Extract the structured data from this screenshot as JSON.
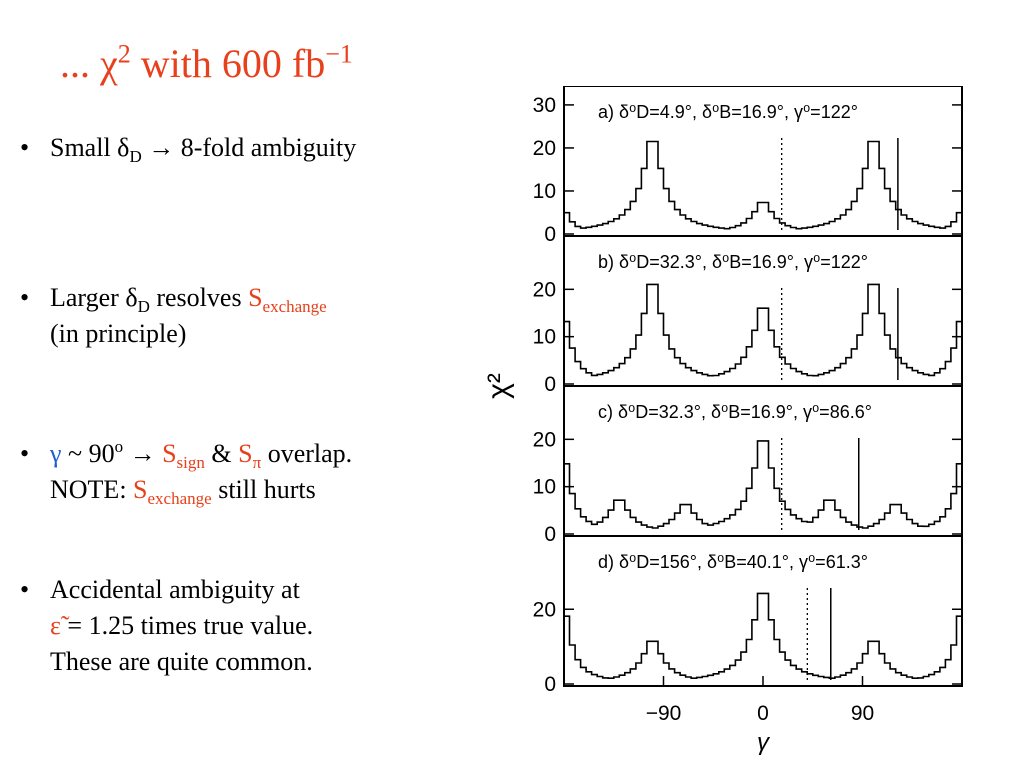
{
  "slide": {
    "title": {
      "prefix": "... ",
      "chi": "χ",
      "chi_exp": "2",
      "middle": " with  600 fb",
      "fb_exp": "−1"
    },
    "bullets": [
      {
        "marker": "•",
        "small": "Small ",
        "delta": "δ",
        "delta_sub": "D",
        "arrow_text": " → 8-fold ambiguity"
      },
      {
        "marker": "•",
        "larger": "Larger ",
        "delta": "δ",
        "delta_sub": "D",
        "resolves": " resolves ",
        "S": "S",
        "S_sub": "exchange",
        "line2": "(in principle)"
      },
      {
        "marker": "•",
        "gamma": "γ",
        "approx": " ~ 90",
        "deg": "o",
        "arrow": " → ",
        "S1": "S",
        "S1_sub": "sign",
        "amp": " & ",
        "S2": "S",
        "S2_sub": "π",
        "overlap": " overlap.",
        "note": "NOTE: ",
        "S3": "S",
        "S3_sub": "exchange",
        "hurts": " still hurts"
      },
      {
        "marker": "•",
        "line1": "Accidental ambiguity at",
        "eps": "ε̃",
        "line2_rest": " = 1.25 times true value.",
        "line3": "These are quite common."
      }
    ]
  },
  "chart_data": {
    "type": "line",
    "xlabel": "γ",
    "ylabel": "χ²",
    "xlim": [
      -180,
      180
    ],
    "xticks": [
      "−90",
      "0",
      "90"
    ],
    "panels": [
      {
        "label": "a) δ⁰D=4.9°, δ⁰B=16.9°, γ⁰=122°",
        "ylim": [
          0,
          33
        ],
        "yticks": [
          "30",
          "20",
          "10",
          "0"
        ],
        "peaks": [
          [
            -100,
            23.5
          ],
          [
            0,
            8
          ],
          [
            100,
            23.5
          ]
        ],
        "edge": 6,
        "solid_lines": [
          122
        ],
        "dotted_lines": [
          16.9
        ]
      },
      {
        "label": "b) δ⁰D=32.3°, δ⁰B=16.9°, γ⁰=122°",
        "ylim": [
          0,
          30
        ],
        "yticks": [
          "20",
          "10",
          "0"
        ],
        "peaks": [
          [
            -100,
            23
          ],
          [
            0,
            17.5
          ],
          [
            100,
            23
          ]
        ],
        "edge": 16,
        "solid_lines": [
          122
        ],
        "dotted_lines": [
          16.9
        ]
      },
      {
        "label": "c) δ⁰D=32.3°, δ⁰B=16.9°, γ⁰=86.6°",
        "ylim": [
          0,
          30
        ],
        "yticks": [
          "20",
          "10",
          "0"
        ],
        "peaks": [
          [
            0,
            21.5
          ],
          [
            -130,
            7.8
          ],
          [
            -70,
            6.8
          ],
          [
            60,
            7.8
          ],
          [
            120,
            6.8
          ]
        ],
        "edge": 18,
        "solid_lines": [
          86.6
        ],
        "dotted_lines": [
          16.9
        ]
      },
      {
        "label": "d) δ⁰D=156°, δ⁰B=40.1°, γ⁰=61.3°",
        "ylim": [
          0,
          38
        ],
        "yticks": [
          "20",
          "0"
        ],
        "peaks": [
          [
            -100,
            12.5
          ],
          [
            0,
            26.5
          ],
          [
            100,
            12.5
          ]
        ],
        "edge": 22,
        "solid_lines": [
          61.3
        ],
        "dotted_lines": [
          40.1
        ]
      }
    ]
  }
}
